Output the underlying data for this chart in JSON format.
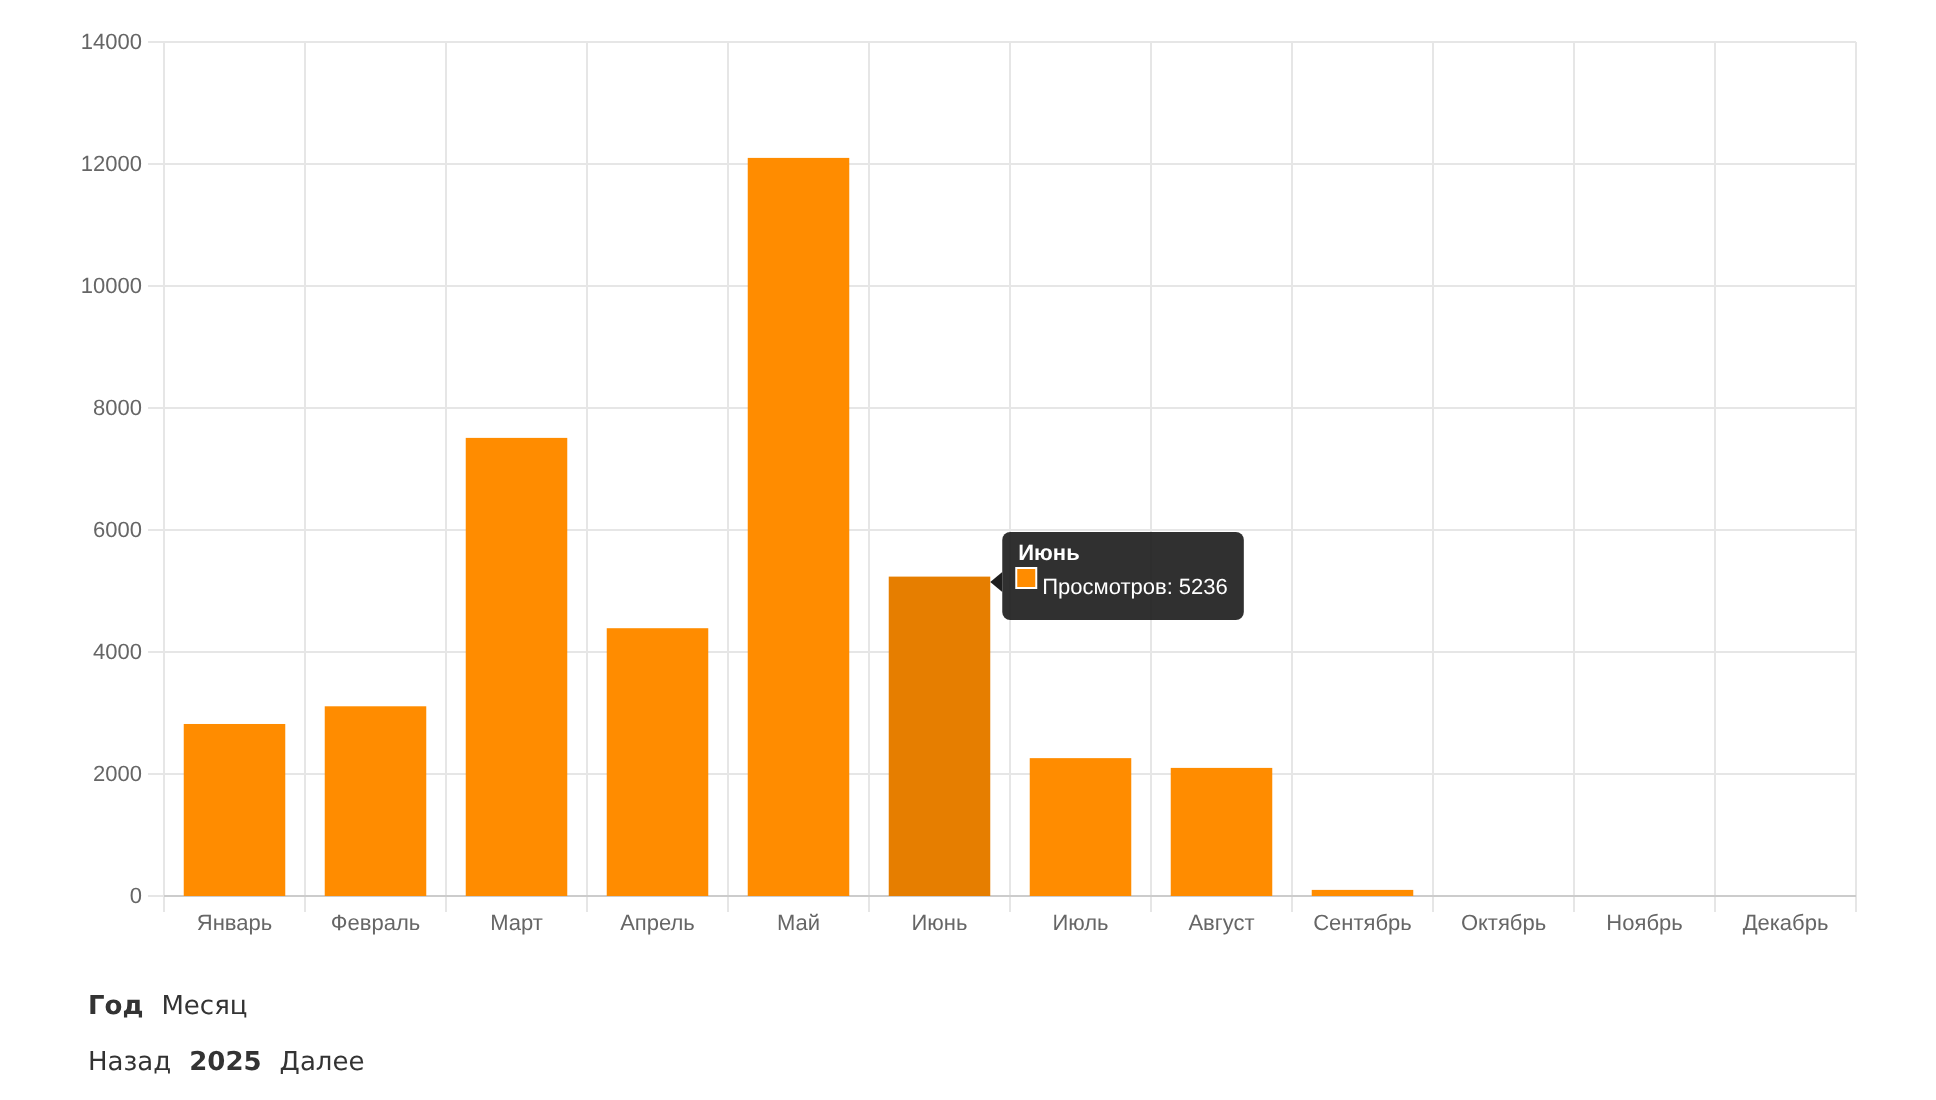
{
  "chart_data": {
    "type": "bar",
    "categories": [
      "Январь",
      "Февраль",
      "Март",
      "Апрель",
      "Май",
      "Июнь",
      "Июль",
      "Август",
      "Сентябрь",
      "Октябрь",
      "Ноябрь",
      "Декабрь"
    ],
    "series": [
      {
        "color": "#ff8c00",
        "colors": [
          "#ff8c00",
          "#ff8c00",
          "#ff8c00",
          "#ff8c00",
          "#ff8c00",
          "#e67e00",
          "#ff8c00",
          "#ff8c00",
          "#ff8c00",
          "#ff8c00",
          "#ff8c00",
          "#ff8c00"
        ],
        "values": [
          2820,
          3110,
          7510,
          4390,
          12100,
          5236,
          2260,
          2100,
          100,
          0,
          0,
          0
        ]
      }
    ],
    "ylim": [
      0,
      14000
    ],
    "yticks": [
      0,
      2000,
      4000,
      6000,
      8000,
      10000,
      12000,
      14000
    ],
    "grid": true,
    "legend": false,
    "annotations": [
      "Июнь",
      "Просмотров: 5236",
      "Год",
      "Месяц",
      "Назад",
      "2025",
      "Далее"
    ]
  }
}
